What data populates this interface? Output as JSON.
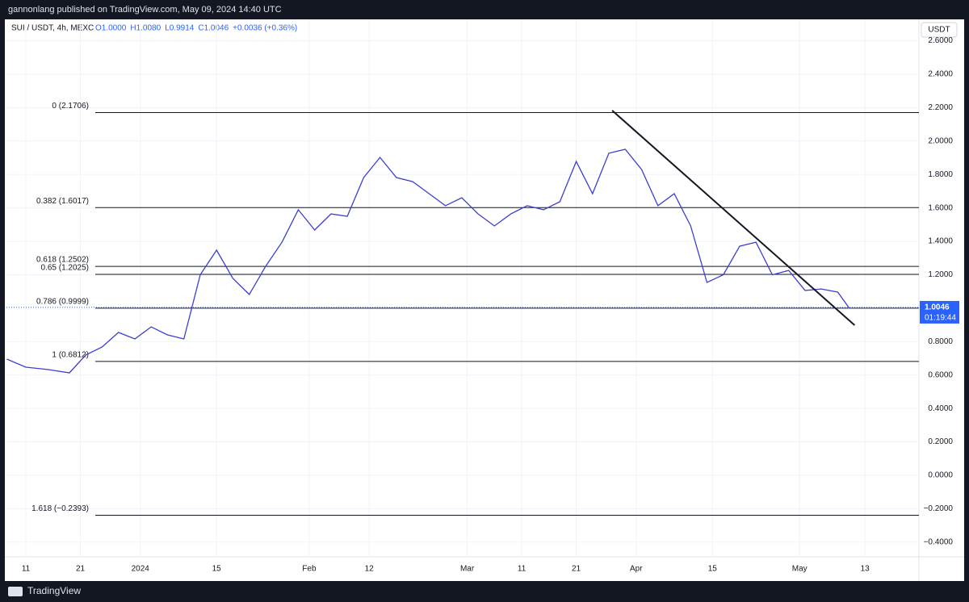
{
  "header": {
    "text": "gannonlang published on TradingView.com, May 09, 2024 14:40 UTC"
  },
  "footer": {
    "brand": "TradingView"
  },
  "chart_data": {
    "type": "line",
    "symbol": "SUI / USDT, 4h, MEXC",
    "ohlc_text": [
      "O1.0000",
      "H1.0080",
      "L0.9914",
      "C1.0046",
      "+0.0036 (+0.36%)"
    ],
    "currency": "USDT",
    "last_price": {
      "value": 1.0046,
      "label": "1.0046"
    },
    "countdown": "01:19:44",
    "color": "#3b3fd0",
    "x": [
      6.5,
      10,
      14,
      18,
      21,
      24,
      27,
      30,
      33,
      36,
      39,
      42,
      45,
      48,
      51,
      54,
      57,
      60,
      63,
      66,
      69,
      72,
      75,
      78,
      81,
      84,
      87,
      90,
      93,
      96,
      99,
      102,
      105,
      108,
      111,
      114,
      117,
      120,
      123,
      126,
      129,
      132,
      135,
      138,
      141,
      144,
      147,
      150,
      153,
      156,
      159,
      161
    ],
    "values": [
      0.695,
      0.647,
      0.633,
      0.613,
      0.72,
      0.768,
      0.855,
      0.816,
      0.888,
      0.84,
      0.816,
      1.2,
      1.347,
      1.178,
      1.082,
      1.25,
      1.395,
      1.589,
      1.468,
      1.564,
      1.55,
      1.782,
      1.902,
      1.782,
      1.757,
      1.685,
      1.613,
      1.661,
      1.564,
      1.492,
      1.564,
      1.613,
      1.589,
      1.637,
      1.878,
      1.685,
      1.927,
      1.951,
      1.83,
      1.613,
      1.685,
      1.492,
      1.154,
      1.2,
      1.371,
      1.395,
      1.2,
      1.226,
      1.106,
      1.115,
      1.096,
      1.0046
    ],
    "xlim": [
      6.44,
      173.9
    ],
    "xticks": [
      {
        "value": 10,
        "label": "11"
      },
      {
        "value": 20,
        "label": "21"
      },
      {
        "value": 31,
        "label": "2024"
      },
      {
        "value": 45,
        "label": "15"
      },
      {
        "value": 62,
        "label": "Feb"
      },
      {
        "value": 73,
        "label": "12"
      },
      {
        "value": 91,
        "label": "Mar"
      },
      {
        "value": 101,
        "label": "11"
      },
      {
        "value": 111,
        "label": "21"
      },
      {
        "value": 122,
        "label": "Apr"
      },
      {
        "value": 136,
        "label": "15"
      },
      {
        "value": 152,
        "label": "May"
      },
      {
        "value": 164,
        "label": "13"
      }
    ],
    "ylim": [
      -0.488,
      2.709
    ],
    "yticks": [
      {
        "value": -0.4,
        "label": "−0.4000"
      },
      {
        "value": -0.2,
        "label": "−0.2000"
      },
      {
        "value": 0,
        "label": "0.0000"
      },
      {
        "value": 0.2,
        "label": "0.2000"
      },
      {
        "value": 0.4,
        "label": "0.4000"
      },
      {
        "value": 0.6,
        "label": "0.6000"
      },
      {
        "value": 0.8,
        "label": "0.8000"
      },
      {
        "value": 1.2,
        "label": "1.2000"
      },
      {
        "value": 1.4,
        "label": "1.4000"
      },
      {
        "value": 1.6,
        "label": "1.6000"
      },
      {
        "value": 1.8,
        "label": "1.8000"
      },
      {
        "value": 2.0,
        "label": "2.0000"
      },
      {
        "value": 2.2,
        "label": "2.2000"
      },
      {
        "value": 2.4,
        "label": "2.4000"
      },
      {
        "value": 2.6,
        "label": "2.6000"
      }
    ],
    "grid": true,
    "fib_levels": [
      {
        "value": 2.1706,
        "label": "0 (2.1706)"
      },
      {
        "value": 1.6017,
        "label": "0.382 (1.6017)"
      },
      {
        "value": 1.2502,
        "label": "0.618 (1.2502)"
      },
      {
        "value": 1.2025,
        "label": "0.65 (1.2025)"
      },
      {
        "value": 0.9999,
        "label": "0.786 (0.9999)"
      },
      {
        "value": 0.6812,
        "label": "1 (0.6812)"
      },
      {
        "value": -0.2393,
        "label": "1.618 (−0.2393)"
      }
    ],
    "trendline": {
      "x": [
        117.6,
        162.1
      ],
      "values": [
        2.183,
        0.898
      ]
    }
  }
}
